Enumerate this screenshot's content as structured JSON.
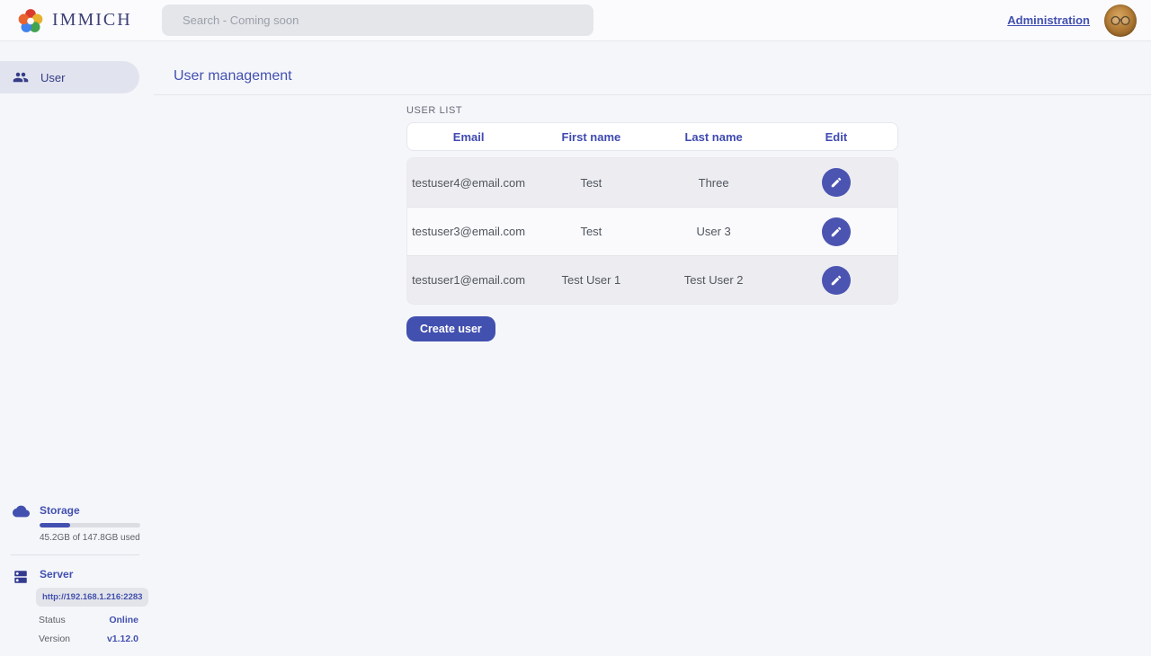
{
  "app": {
    "name": "IMMICH"
  },
  "navbar": {
    "search": {
      "placeholder": "Search - Coming soon"
    },
    "administration_link": "Administration"
  },
  "sidebar": {
    "items": [
      {
        "label": "User",
        "icon": "people-icon",
        "active": true
      }
    ],
    "storage": {
      "title": "Storage",
      "icon": "cloud-icon",
      "usage_text": "45.2GB of 147.8GB used",
      "percent_used": 30.6
    },
    "server": {
      "title": "Server",
      "icon": "server-icon",
      "url": "http://192.168.1.216:2283",
      "status_label": "Status",
      "status_value": "Online",
      "version_label": "Version",
      "version_value": "v1.12.0"
    }
  },
  "page": {
    "title": "User management",
    "section_label": "USER LIST",
    "table": {
      "headers": [
        "Email",
        "First name",
        "Last name",
        "Edit"
      ],
      "rows": [
        {
          "email": "testuser4@email.com",
          "first_name": "Test",
          "last_name": "Three"
        },
        {
          "email": "testuser3@email.com",
          "first_name": "Test",
          "last_name": "User 3"
        },
        {
          "email": "testuser1@email.com",
          "first_name": "Test User 1",
          "last_name": "Test User 2"
        }
      ]
    },
    "create_button_label": "Create user"
  },
  "colors": {
    "accent": "#4250af",
    "page_background": "#f5f6fa",
    "row_alt": "#ededf1",
    "status_online": "#4250af"
  }
}
